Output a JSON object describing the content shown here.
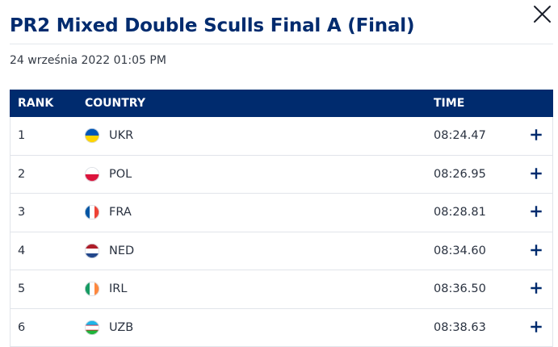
{
  "modal": {
    "title": "PR2 Mixed Double Sculls Final A (Final)",
    "datetime": "24 września 2022 01:05 PM"
  },
  "table": {
    "headers": {
      "rank": "RANK",
      "country": "COUNTRY",
      "time": "TIME"
    },
    "rows": [
      {
        "rank": "1",
        "country": "UKR",
        "time": "08:24.47",
        "flag_colors": [
          "#0057b7",
          "#ffd500"
        ]
      },
      {
        "rank": "2",
        "country": "POL",
        "time": "08:26.95",
        "flag_colors": [
          "#ffffff",
          "#dc143c"
        ]
      },
      {
        "rank": "3",
        "country": "FRA",
        "time": "08:28.81",
        "flag_colors": [
          "#0055a4",
          "#ffffff",
          "#ef4135"
        ]
      },
      {
        "rank": "4",
        "country": "NED",
        "time": "08:34.60",
        "flag_colors": [
          "#ae1c28",
          "#ffffff",
          "#21468b"
        ]
      },
      {
        "rank": "5",
        "country": "IRL",
        "time": "08:36.50",
        "flag_colors": [
          "#169b62",
          "#ffffff",
          "#ff883e"
        ]
      },
      {
        "rank": "6",
        "country": "UZB",
        "time": "08:38.63",
        "flag_colors": [
          "#1eb5e8",
          "#ffffff",
          "#1eb53a"
        ]
      }
    ]
  },
  "colors": {
    "brand_navy": "#002b6e",
    "row_border": "#e1e4ea"
  },
  "icons": {
    "close": "close-icon",
    "expand": "plus-icon"
  }
}
